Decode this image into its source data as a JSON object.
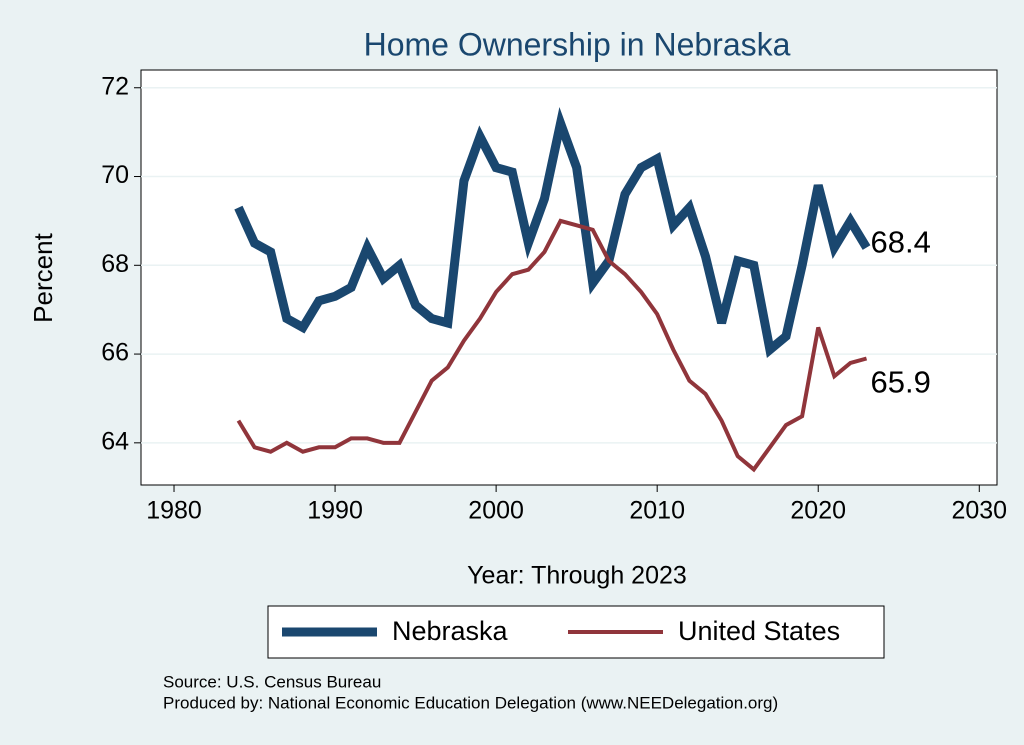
{
  "chart_data": {
    "type": "line",
    "title": "Home Ownership in Nebraska",
    "x_label": "Year: Through 2023",
    "y_label": "Percent",
    "x": [
      1984,
      1985,
      1986,
      1987,
      1988,
      1989,
      1990,
      1991,
      1992,
      1993,
      1994,
      1995,
      1996,
      1997,
      1998,
      1999,
      2000,
      2001,
      2002,
      2003,
      2004,
      2005,
      2006,
      2007,
      2008,
      2009,
      2010,
      2011,
      2012,
      2013,
      2014,
      2015,
      2016,
      2017,
      2018,
      2019,
      2020,
      2021,
      2022,
      2023
    ],
    "series": [
      {
        "name": "Nebraska",
        "color": "#1a476f",
        "width": 9,
        "values": [
          69.3,
          68.5,
          68.3,
          66.8,
          66.6,
          67.2,
          67.3,
          67.5,
          68.4,
          67.7,
          68.0,
          67.1,
          66.8,
          66.7,
          69.9,
          70.9,
          70.2,
          70.1,
          68.5,
          69.5,
          71.2,
          70.2,
          67.6,
          68.1,
          69.6,
          70.2,
          70.4,
          68.9,
          69.3,
          68.2,
          66.7,
          68.1,
          68.0,
          66.1,
          66.4,
          68.0,
          69.8,
          68.4,
          69.0,
          68.4
        ],
        "value_labels": [
          null,
          null,
          null,
          null,
          null,
          null,
          null,
          null,
          null,
          null,
          null,
          null,
          null,
          null,
          null,
          null,
          null,
          null,
          null,
          null,
          null,
          null,
          null,
          null,
          null,
          null,
          null,
          null,
          null,
          null,
          null,
          null,
          null,
          null,
          null,
          null,
          null,
          null,
          null,
          "68.4"
        ]
      },
      {
        "name": "United States",
        "color": "#90353b",
        "width": 4,
        "values": [
          64.5,
          63.9,
          63.8,
          64.0,
          63.8,
          63.9,
          63.9,
          64.1,
          64.1,
          64.0,
          64.0,
          64.7,
          65.4,
          65.7,
          66.3,
          66.8,
          67.4,
          67.8,
          67.9,
          68.3,
          69.0,
          68.9,
          68.8,
          68.1,
          67.8,
          67.4,
          66.9,
          66.1,
          65.4,
          65.1,
          64.5,
          63.7,
          63.4,
          63.9,
          64.4,
          64.6,
          66.6,
          65.5,
          65.8,
          65.9
        ],
        "value_labels": [
          null,
          null,
          null,
          null,
          null,
          null,
          null,
          null,
          null,
          null,
          null,
          null,
          null,
          null,
          null,
          null,
          null,
          null,
          null,
          null,
          null,
          null,
          null,
          null,
          null,
          null,
          null,
          null,
          null,
          null,
          null,
          null,
          null,
          null,
          null,
          null,
          null,
          null,
          null,
          "65.9"
        ]
      }
    ],
    "xlim": [
      1977.95,
      2031.1
    ],
    "xticks": [
      1980,
      1990,
      2000,
      2010,
      2020,
      2030
    ],
    "ylim": [
      63.05,
      72.4
    ],
    "yticks": [
      64,
      66,
      68,
      70,
      72
    ],
    "grid": true,
    "notes": [
      "Source: U.S. Census Bureau",
      "Produced by: National Economic Education Delegation (www.NEEDelegation.org)"
    ]
  }
}
